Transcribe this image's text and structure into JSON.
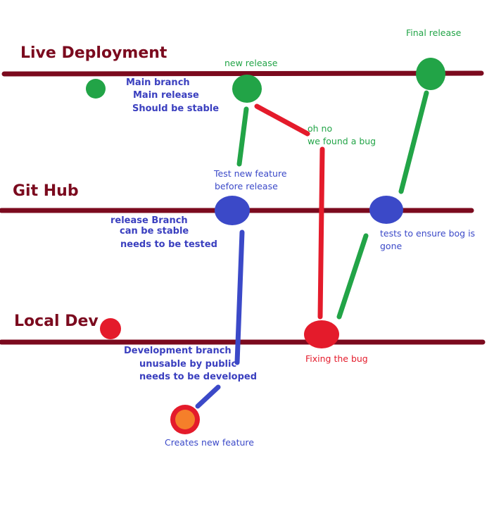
{
  "lanes": {
    "live": "Live Deployment",
    "github": "Git Hub",
    "local": "Local Dev"
  },
  "lane_notes": {
    "main": [
      "Main branch",
      "Main release",
      "Should be stable"
    ],
    "release": [
      "release Branch",
      "can be stable",
      "needs to be tested"
    ],
    "dev": [
      "Development branch",
      "unusable by public",
      "needs to be developed"
    ]
  },
  "annotations": {
    "new_release": "new release",
    "final_release": "Final release",
    "found_bug": [
      "oh no",
      "we found a bug"
    ],
    "test_feature": [
      "Test new feature",
      "before release"
    ],
    "tests_bug_gone": [
      "tests to ensure bog is",
      "gone"
    ],
    "fixing_bug": "Fixing the bug",
    "creates_feature": "Creates new feature"
  },
  "colors": {
    "lane_line": "#7b0a1e",
    "green": "#22a447",
    "blue": "#3b49c8",
    "red": "#e41b2b",
    "orange": "#f57f2a"
  }
}
